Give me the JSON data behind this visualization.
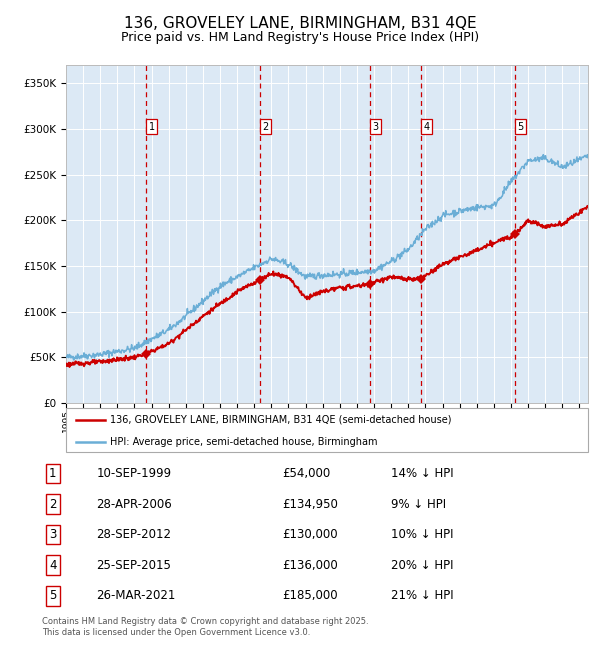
{
  "title": "136, GROVELEY LANE, BIRMINGHAM, B31 4QE",
  "subtitle": "Price paid vs. HM Land Registry's House Price Index (HPI)",
  "title_fontsize": 11,
  "subtitle_fontsize": 9,
  "plot_bg_color": "#dce9f5",
  "legend_line1": "136, GROVELEY LANE, BIRMINGHAM, B31 4QE (semi-detached house)",
  "legend_line2": "HPI: Average price, semi-detached house, Birmingham",
  "footer": "Contains HM Land Registry data © Crown copyright and database right 2025.\nThis data is licensed under the Open Government Licence v3.0.",
  "transactions": [
    {
      "num": 1,
      "date": "10-SEP-1999",
      "price": 54000,
      "price_str": "£54,000",
      "pct": "14%",
      "year_x": 1999.69
    },
    {
      "num": 2,
      "date": "28-APR-2006",
      "price": 134950,
      "price_str": "£134,950",
      "pct": "9%",
      "year_x": 2006.32
    },
    {
      "num": 3,
      "date": "28-SEP-2012",
      "price": 130000,
      "price_str": "£130,000",
      "pct": "10%",
      "year_x": 2012.74
    },
    {
      "num": 4,
      "date": "25-SEP-2015",
      "price": 136000,
      "price_str": "£136,000",
      "pct": "20%",
      "year_x": 2015.73
    },
    {
      "num": 5,
      "date": "26-MAR-2021",
      "price": 185000,
      "price_str": "£185,000",
      "pct": "21%",
      "year_x": 2021.23
    }
  ],
  "hpi_color": "#6baed6",
  "price_color": "#cc0000",
  "vline_color": "#cc0000",
  "ylim": [
    0,
    370000
  ],
  "xlim_start": 1995.0,
  "xlim_end": 2025.5,
  "yticks": [
    0,
    50000,
    100000,
    150000,
    200000,
    250000,
    300000,
    350000
  ]
}
